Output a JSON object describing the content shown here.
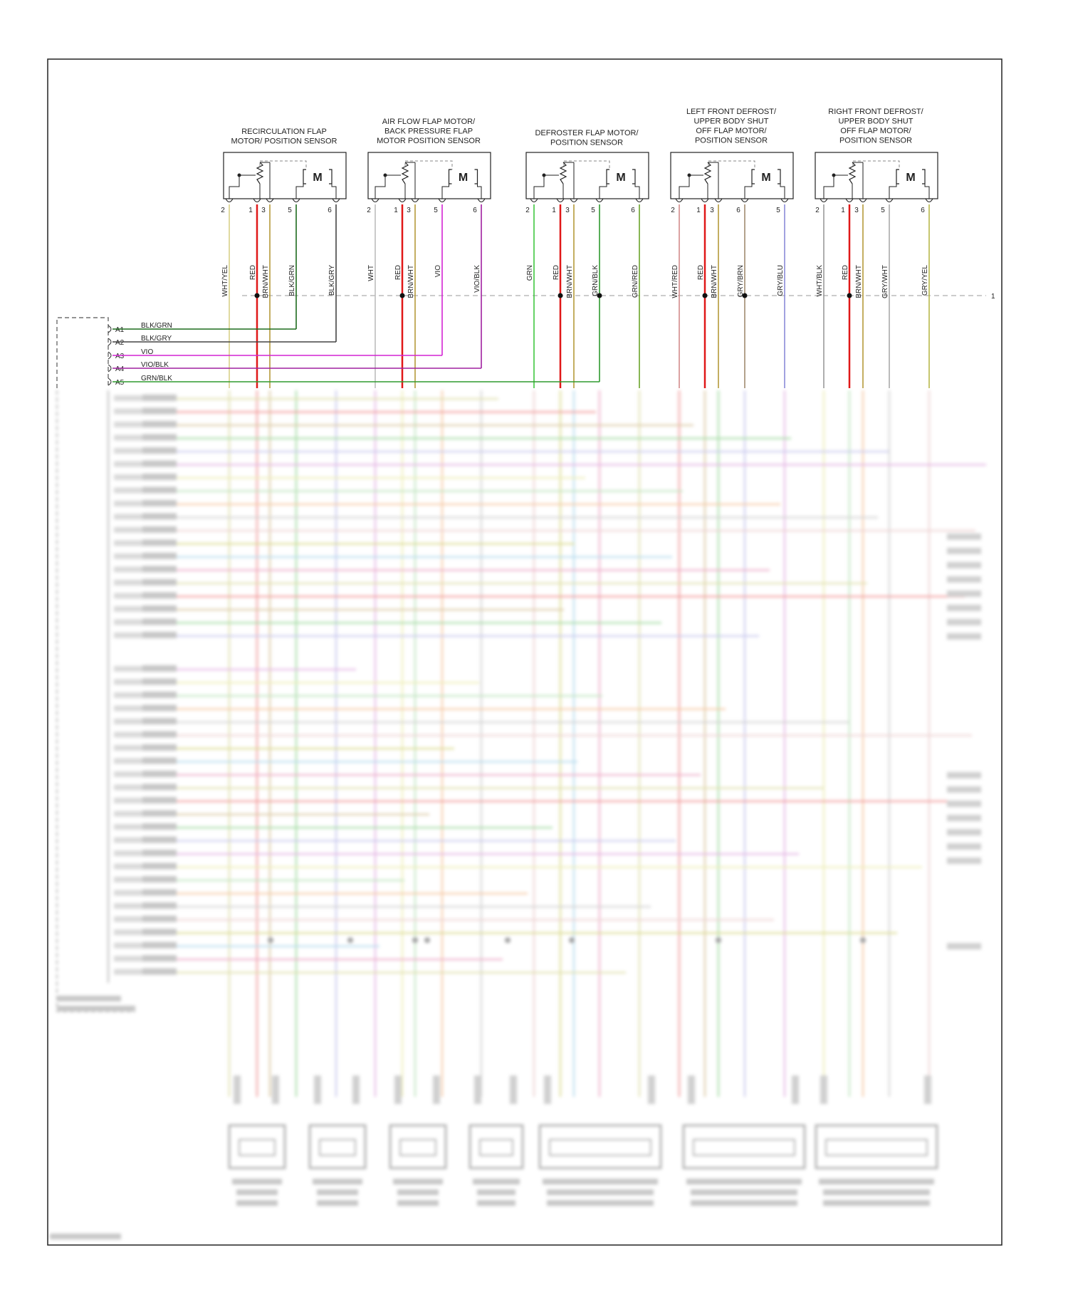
{
  "colors": {
    "RED": "#e01818",
    "BRN/WHT": "#b59a3a",
    "WHT/YEL": "#d8d088",
    "BLK/GRN": "#1d6b1d",
    "BLK/GRY": "#444444",
    "WHT": "#bdbdbd",
    "VIO": "#d424d4",
    "VIO/BLK": "#a020a0",
    "GRN": "#3fc63f",
    "GRN/BLK": "#2f9a2f",
    "GRN/RED": "#6aa42a",
    "WHT/RED": "#d48a8a",
    "GRY/BRN": "#a08a70",
    "GRY/BLU": "#8a8ad8",
    "WHT/BLK": "#9a9a9a",
    "GRY/WHT": "#aaaaaa",
    "GRY/YEL": "#b8b84a"
  },
  "components": [
    {
      "title": [
        "RECIRCULATION FLAP",
        "MOTOR/ POSITION SENSOR"
      ],
      "pins": [
        {
          "num": "2",
          "wire": "WHT/YEL"
        },
        {
          "num": "1",
          "wire": "RED"
        },
        {
          "num": "3",
          "wire": "BRN/WHT"
        },
        {
          "num": "5",
          "wire": "BLK/GRN"
        },
        {
          "num": "6",
          "wire": "BLK/GRY"
        }
      ]
    },
    {
      "title": [
        "AIR FLOW FLAP MOTOR/",
        "BACK PRESSURE FLAP",
        "MOTOR POSITION SENSOR"
      ],
      "pins": [
        {
          "num": "2",
          "wire": "WHT"
        },
        {
          "num": "1",
          "wire": "RED"
        },
        {
          "num": "3",
          "wire": "BRN/WHT"
        },
        {
          "num": "5",
          "wire": "VIO"
        },
        {
          "num": "6",
          "wire": "VIO/BLK"
        }
      ]
    },
    {
      "title": [
        "DEFROSTER FLAP MOTOR/",
        "POSITION SENSOR"
      ],
      "pins": [
        {
          "num": "2",
          "wire": "GRN"
        },
        {
          "num": "1",
          "wire": "RED"
        },
        {
          "num": "3",
          "wire": "BRN/WHT"
        },
        {
          "num": "5",
          "wire": "GRN/BLK"
        },
        {
          "num": "6",
          "wire": "GRN/RED"
        }
      ]
    },
    {
      "title": [
        "LEFT FRONT DEFROST/",
        "UPPER BODY SHUT",
        "OFF FLAP MOTOR/",
        "POSITION SENSOR"
      ],
      "pins": [
        {
          "num": "2",
          "wire": "WHT/RED"
        },
        {
          "num": "1",
          "wire": "RED"
        },
        {
          "num": "3",
          "wire": "BRN/WHT"
        },
        {
          "num": "6",
          "wire": "GRY/BRN"
        },
        {
          "num": "5",
          "wire": "GRY/BLU"
        }
      ]
    },
    {
      "title": [
        "RIGHT FRONT DEFROST/",
        "UPPER BODY SHUT",
        "OFF FLAP MOTOR/",
        "POSITION SENSOR"
      ],
      "pins": [
        {
          "num": "2",
          "wire": "WHT/BLK"
        },
        {
          "num": "1",
          "wire": "RED"
        },
        {
          "num": "3",
          "wire": "BRN/WHT"
        },
        {
          "num": "5",
          "wire": "GRY/WHT"
        },
        {
          "num": "6",
          "wire": "GRY/YEL"
        }
      ]
    }
  ],
  "motor_label": "M",
  "ground_ref": "1",
  "connector_rows": [
    {
      "pin": "A1",
      "wire": "BLK/GRN"
    },
    {
      "pin": "A2",
      "wire": "BLK/GRY"
    },
    {
      "pin": "A3",
      "wire": "VIO"
    },
    {
      "pin": "A4",
      "wire": "VIO/BLK"
    },
    {
      "pin": "A5",
      "wire": "GRN/BLK"
    }
  ]
}
